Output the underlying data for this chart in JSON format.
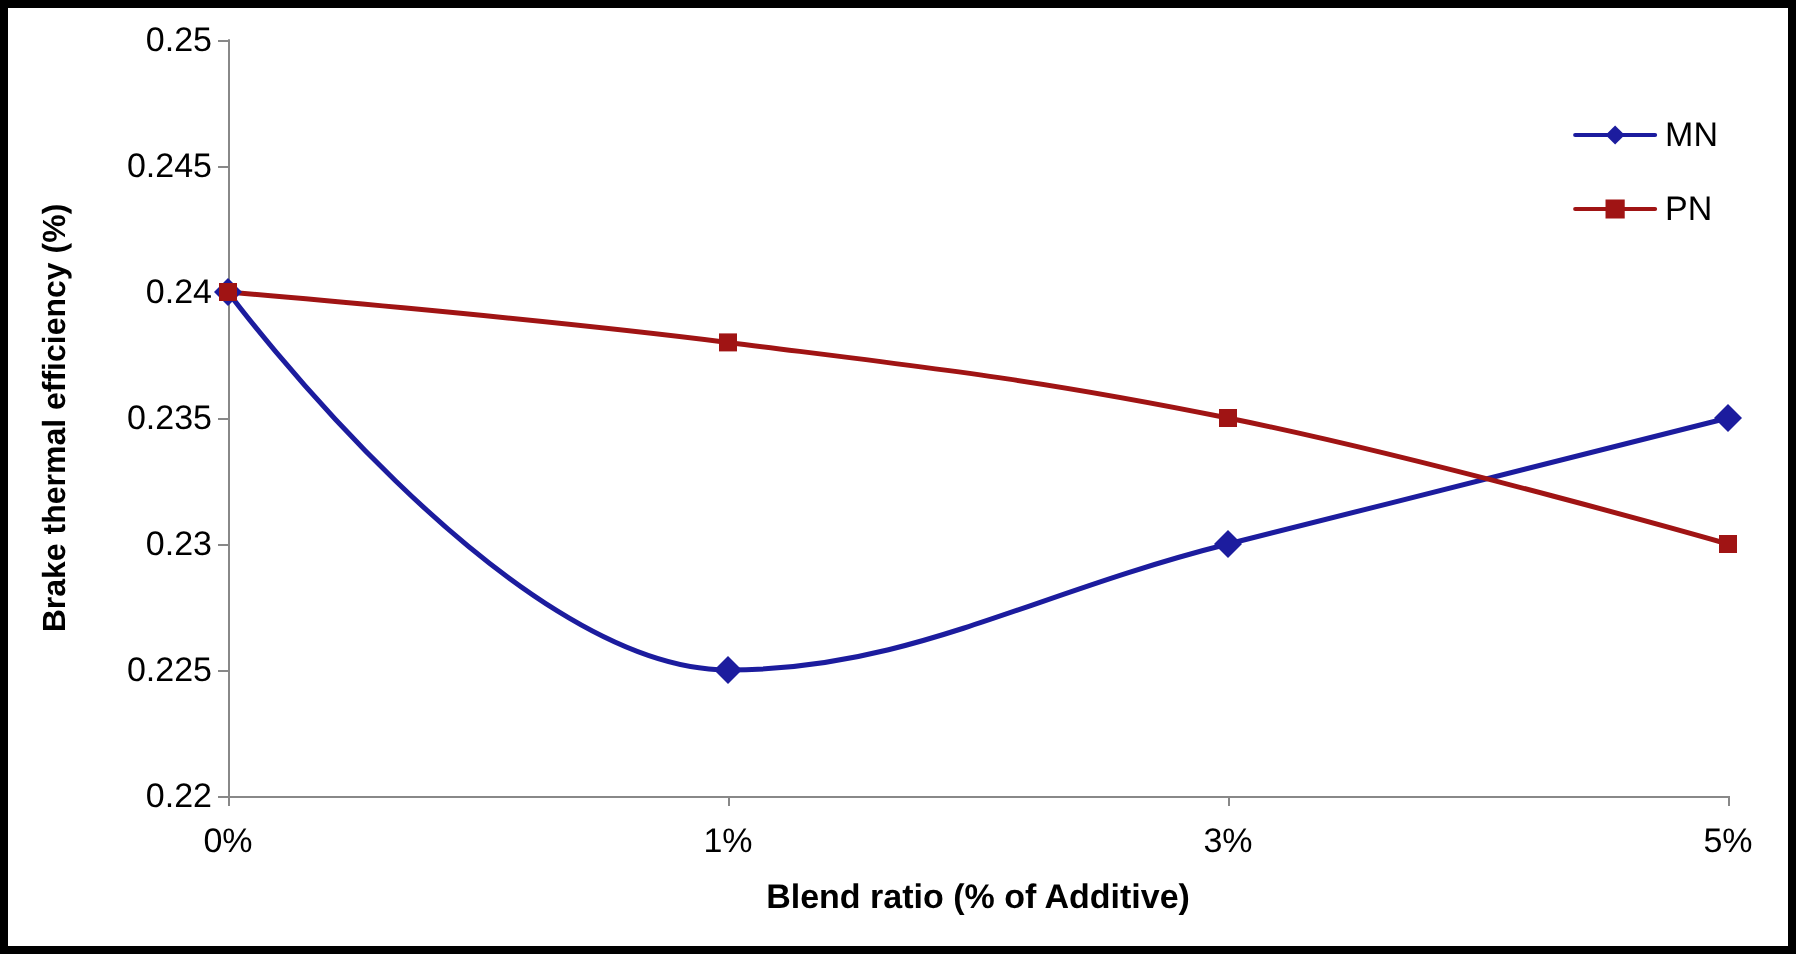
{
  "chart_data": {
    "type": "line",
    "xlabel": "Blend ratio (% of Additive)",
    "ylabel": "Brake thermal efficiency (%)",
    "categories": [
      "0%",
      "1%",
      "3%",
      "5%"
    ],
    "series": [
      {
        "name": "MN",
        "color": "#1c1c9e",
        "marker": "diamond",
        "values": [
          0.24,
          0.225,
          0.23,
          0.235
        ]
      },
      {
        "name": "PN",
        "color": "#a01414",
        "marker": "square",
        "values": [
          0.24,
          0.238,
          0.235,
          0.23
        ]
      }
    ],
    "ylim": [
      0.22,
      0.25
    ],
    "yticks": [
      0.22,
      0.225,
      0.23,
      0.235,
      0.24,
      0.245,
      0.25
    ],
    "grid": false,
    "legend": "top right",
    "line_style": "solid"
  }
}
